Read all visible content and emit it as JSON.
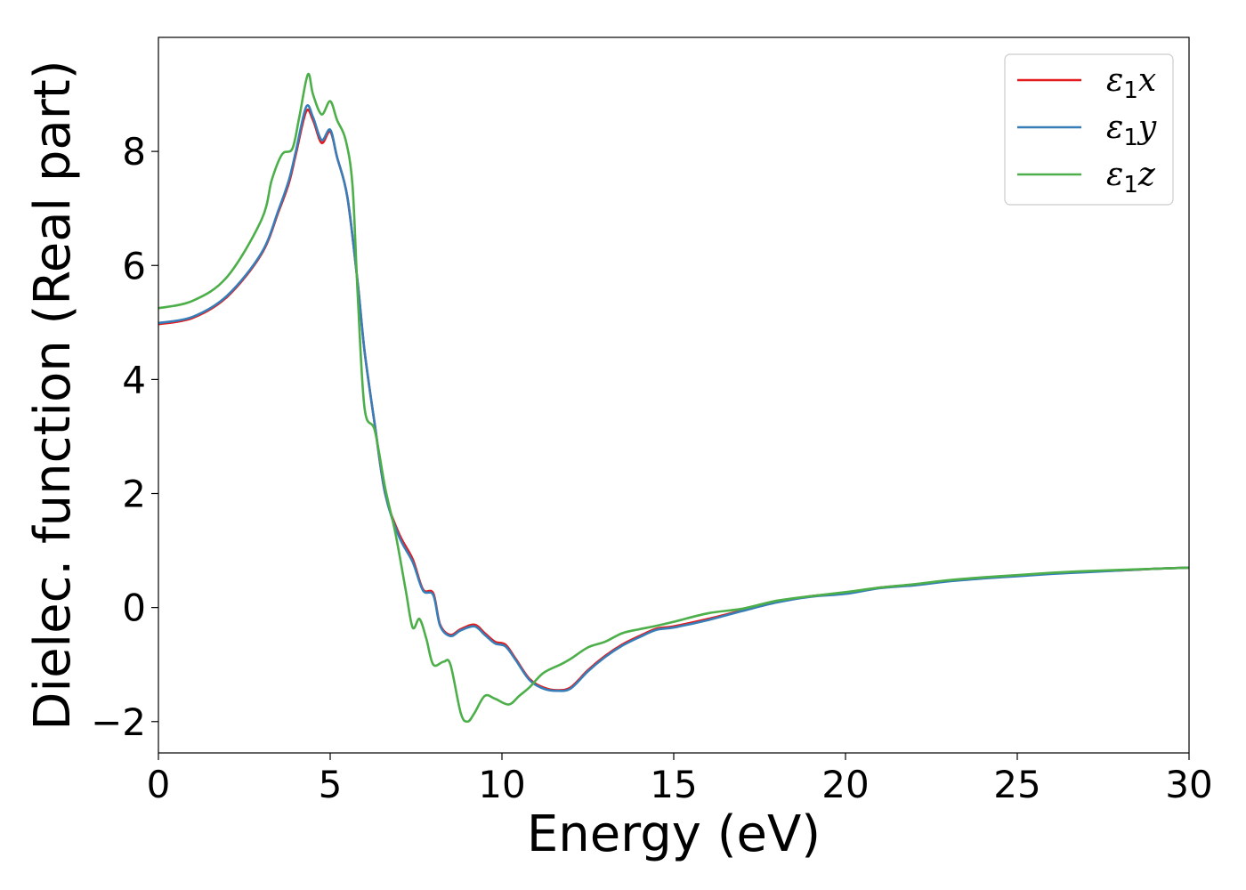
{
  "chart_data": {
    "type": "line",
    "title": "",
    "xlabel": "Energy (eV)",
    "ylabel": "Dielec. function (Real part)",
    "xlim": [
      0,
      30
    ],
    "ylim": [
      -2.55,
      10
    ],
    "xticks": [
      0,
      5,
      10,
      15,
      20,
      25,
      30
    ],
    "yticks": [
      -2,
      0,
      2,
      4,
      6,
      8
    ],
    "xtick_labels": [
      "0",
      "5",
      "10",
      "15",
      "20",
      "25",
      "30"
    ],
    "ytick_labels": [
      "−2",
      "0",
      "2",
      "4",
      "6",
      "8"
    ],
    "grid": false,
    "legend_position": "top-right",
    "series": [
      {
        "name": "ε1x",
        "legend_main": "ε",
        "legend_sub": "1",
        "legend_var": "x",
        "color": "#e41a1c",
        "points": [
          [
            0,
            4.97
          ],
          [
            1,
            5.08
          ],
          [
            2,
            5.45
          ],
          [
            3,
            6.2
          ],
          [
            3.5,
            6.95
          ],
          [
            3.8,
            7.45
          ],
          [
            4.0,
            7.95
          ],
          [
            4.3,
            8.7
          ],
          [
            4.5,
            8.55
          ],
          [
            4.75,
            8.15
          ],
          [
            5.0,
            8.35
          ],
          [
            5.2,
            7.9
          ],
          [
            5.5,
            7.2
          ],
          [
            5.8,
            5.7
          ],
          [
            6.0,
            4.5
          ],
          [
            6.3,
            3.2
          ],
          [
            6.6,
            2.0
          ],
          [
            7.0,
            1.3
          ],
          [
            7.4,
            0.85
          ],
          [
            7.7,
            0.32
          ],
          [
            8.0,
            0.25
          ],
          [
            8.2,
            -0.3
          ],
          [
            8.5,
            -0.48
          ],
          [
            8.8,
            -0.38
          ],
          [
            9.2,
            -0.3
          ],
          [
            9.5,
            -0.45
          ],
          [
            9.8,
            -0.6
          ],
          [
            10.1,
            -0.65
          ],
          [
            10.4,
            -0.9
          ],
          [
            10.8,
            -1.25
          ],
          [
            11.2,
            -1.4
          ],
          [
            11.6,
            -1.45
          ],
          [
            12.0,
            -1.4
          ],
          [
            12.5,
            -1.1
          ],
          [
            13.0,
            -0.85
          ],
          [
            13.5,
            -0.65
          ],
          [
            14.0,
            -0.5
          ],
          [
            14.5,
            -0.37
          ],
          [
            15.0,
            -0.33
          ],
          [
            16.0,
            -0.2
          ],
          [
            17.0,
            -0.05
          ],
          [
            18.0,
            0.1
          ],
          [
            19.0,
            0.2
          ],
          [
            20.0,
            0.25
          ],
          [
            21.0,
            0.35
          ],
          [
            22.0,
            0.4
          ],
          [
            23.0,
            0.47
          ],
          [
            24.0,
            0.52
          ],
          [
            25.0,
            0.56
          ],
          [
            26.0,
            0.6
          ],
          [
            27.0,
            0.63
          ],
          [
            28.0,
            0.65
          ],
          [
            29.0,
            0.68
          ],
          [
            30.0,
            0.7
          ]
        ]
      },
      {
        "name": "ε1y",
        "legend_main": "ε",
        "legend_sub": "1",
        "legend_var": "y",
        "color": "#377eb8",
        "points": [
          [
            0,
            4.99
          ],
          [
            1,
            5.1
          ],
          [
            2,
            5.47
          ],
          [
            3,
            6.22
          ],
          [
            3.5,
            6.98
          ],
          [
            3.8,
            7.5
          ],
          [
            4.0,
            8.0
          ],
          [
            4.3,
            8.78
          ],
          [
            4.5,
            8.6
          ],
          [
            4.75,
            8.2
          ],
          [
            5.0,
            8.38
          ],
          [
            5.2,
            7.9
          ],
          [
            5.5,
            7.2
          ],
          [
            5.8,
            5.7
          ],
          [
            6.0,
            4.5
          ],
          [
            6.3,
            3.2
          ],
          [
            6.6,
            2.0
          ],
          [
            7.0,
            1.25
          ],
          [
            7.4,
            0.8
          ],
          [
            7.7,
            0.3
          ],
          [
            8.0,
            0.22
          ],
          [
            8.2,
            -0.32
          ],
          [
            8.5,
            -0.5
          ],
          [
            8.8,
            -0.4
          ],
          [
            9.2,
            -0.33
          ],
          [
            9.5,
            -0.48
          ],
          [
            9.8,
            -0.63
          ],
          [
            10.1,
            -0.68
          ],
          [
            10.4,
            -0.92
          ],
          [
            10.8,
            -1.27
          ],
          [
            11.2,
            -1.42
          ],
          [
            11.6,
            -1.46
          ],
          [
            12.0,
            -1.42
          ],
          [
            12.5,
            -1.12
          ],
          [
            13.0,
            -0.87
          ],
          [
            13.5,
            -0.67
          ],
          [
            14.0,
            -0.52
          ],
          [
            14.5,
            -0.39
          ],
          [
            15.0,
            -0.35
          ],
          [
            16.0,
            -0.22
          ],
          [
            17.0,
            -0.06
          ],
          [
            18.0,
            0.09
          ],
          [
            19.0,
            0.19
          ],
          [
            20.0,
            0.24
          ],
          [
            21.0,
            0.34
          ],
          [
            22.0,
            0.39
          ],
          [
            23.0,
            0.46
          ],
          [
            24.0,
            0.51
          ],
          [
            25.0,
            0.55
          ],
          [
            26.0,
            0.59
          ],
          [
            27.0,
            0.62
          ],
          [
            28.0,
            0.65
          ],
          [
            29.0,
            0.68
          ],
          [
            30.0,
            0.7
          ]
        ]
      },
      {
        "name": "ε1z",
        "legend_main": "ε",
        "legend_sub": "1",
        "legend_var": "z",
        "color": "#4daf4a",
        "points": [
          [
            0,
            5.25
          ],
          [
            1,
            5.38
          ],
          [
            2,
            5.8
          ],
          [
            3,
            6.8
          ],
          [
            3.3,
            7.5
          ],
          [
            3.6,
            7.95
          ],
          [
            3.9,
            8.05
          ],
          [
            4.1,
            8.6
          ],
          [
            4.35,
            9.35
          ],
          [
            4.5,
            9.0
          ],
          [
            4.75,
            8.65
          ],
          [
            5.0,
            8.88
          ],
          [
            5.2,
            8.55
          ],
          [
            5.45,
            8.2
          ],
          [
            5.65,
            7.4
          ],
          [
            5.8,
            5.5
          ],
          [
            6.0,
            3.5
          ],
          [
            6.3,
            3.1
          ],
          [
            6.6,
            2.1
          ],
          [
            6.9,
            1.3
          ],
          [
            7.2,
            0.3
          ],
          [
            7.4,
            -0.35
          ],
          [
            7.6,
            -0.2
          ],
          [
            7.8,
            -0.55
          ],
          [
            8.0,
            -1.0
          ],
          [
            8.3,
            -0.95
          ],
          [
            8.5,
            -1.0
          ],
          [
            8.8,
            -1.85
          ],
          [
            9.0,
            -2.0
          ],
          [
            9.2,
            -1.85
          ],
          [
            9.5,
            -1.55
          ],
          [
            9.8,
            -1.6
          ],
          [
            10.2,
            -1.7
          ],
          [
            10.5,
            -1.55
          ],
          [
            10.8,
            -1.4
          ],
          [
            11.2,
            -1.15
          ],
          [
            11.7,
            -1.0
          ],
          [
            12.0,
            -0.9
          ],
          [
            12.5,
            -0.7
          ],
          [
            13.0,
            -0.6
          ],
          [
            13.5,
            -0.45
          ],
          [
            14.0,
            -0.38
          ],
          [
            14.5,
            -0.32
          ],
          [
            15.0,
            -0.25
          ],
          [
            16.0,
            -0.1
          ],
          [
            17.0,
            -0.02
          ],
          [
            18.0,
            0.12
          ],
          [
            19.0,
            0.2
          ],
          [
            20.0,
            0.27
          ],
          [
            21.0,
            0.35
          ],
          [
            22.0,
            0.41
          ],
          [
            23.0,
            0.48
          ],
          [
            24.0,
            0.53
          ],
          [
            25.0,
            0.57
          ],
          [
            26.0,
            0.61
          ],
          [
            27.0,
            0.64
          ],
          [
            28.0,
            0.66
          ],
          [
            29.0,
            0.68
          ],
          [
            30.0,
            0.7
          ]
        ]
      }
    ]
  }
}
